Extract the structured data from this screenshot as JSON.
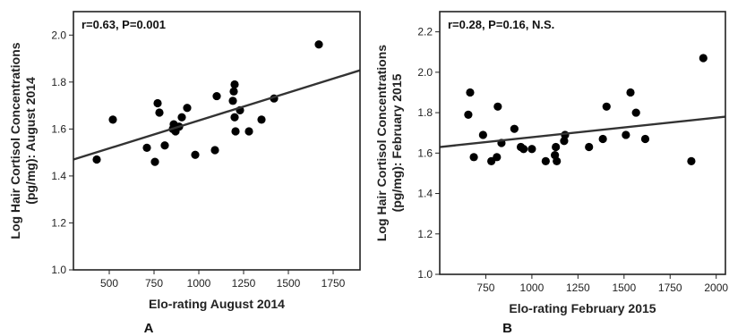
{
  "chart_data": [
    {
      "type": "scatter",
      "panel_label": "A",
      "annotation": "r=0.63, P=0.001",
      "xlabel": "Elo-rating August 2014",
      "ylabel_line1": "Log Hair Cortisol Concentrations",
      "ylabel_line2": "(pg/mg): August 2014",
      "xlim": [
        300,
        1900
      ],
      "ylim": [
        1.0,
        2.1
      ],
      "xticks": [
        500,
        750,
        1000,
        1250,
        1500,
        1750
      ],
      "yticks": [
        1.0,
        1.2,
        1.4,
        1.6,
        1.8,
        2.0
      ],
      "ytick_decimals": 1,
      "fit_line": {
        "x": [
          300,
          1900
        ],
        "y": [
          1.47,
          1.85
        ]
      },
      "points": [
        {
          "x": 430,
          "y": 1.47
        },
        {
          "x": 520,
          "y": 1.64
        },
        {
          "x": 710,
          "y": 1.52
        },
        {
          "x": 755,
          "y": 1.46
        },
        {
          "x": 770,
          "y": 1.71
        },
        {
          "x": 780,
          "y": 1.67
        },
        {
          "x": 810,
          "y": 1.53
        },
        {
          "x": 855,
          "y": 1.6
        },
        {
          "x": 860,
          "y": 1.62
        },
        {
          "x": 870,
          "y": 1.59
        },
        {
          "x": 890,
          "y": 1.61
        },
        {
          "x": 905,
          "y": 1.65
        },
        {
          "x": 935,
          "y": 1.69
        },
        {
          "x": 980,
          "y": 1.49
        },
        {
          "x": 1090,
          "y": 1.51
        },
        {
          "x": 1100,
          "y": 1.74
        },
        {
          "x": 1190,
          "y": 1.72
        },
        {
          "x": 1195,
          "y": 1.76
        },
        {
          "x": 1200,
          "y": 1.79
        },
        {
          "x": 1200,
          "y": 1.65
        },
        {
          "x": 1205,
          "y": 1.59
        },
        {
          "x": 1230,
          "y": 1.68
        },
        {
          "x": 1280,
          "y": 1.59
        },
        {
          "x": 1350,
          "y": 1.64
        },
        {
          "x": 1420,
          "y": 1.73
        },
        {
          "x": 1670,
          "y": 1.96
        }
      ]
    },
    {
      "type": "scatter",
      "panel_label": "B",
      "annotation": "r=0.28, P=0.16, N.S.",
      "xlabel": "Elo-rating February 2015",
      "ylabel_line1": "Log Hair Cortisol Concentrations",
      "ylabel_line2": "(pg/mg): February 2015",
      "xlim": [
        500,
        2050
      ],
      "ylim": [
        1.0,
        2.3
      ],
      "xticks": [
        750,
        1000,
        1250,
        1500,
        1750,
        2000
      ],
      "yticks": [
        1.0,
        1.2,
        1.4,
        1.6,
        1.8,
        2.0,
        2.2
      ],
      "ytick_decimals": 1,
      "fit_line": {
        "x": [
          500,
          2050
        ],
        "y": [
          1.63,
          1.78
        ]
      },
      "points": [
        {
          "x": 655,
          "y": 1.79
        },
        {
          "x": 665,
          "y": 1.9
        },
        {
          "x": 685,
          "y": 1.58
        },
        {
          "x": 735,
          "y": 1.69
        },
        {
          "x": 780,
          "y": 1.56
        },
        {
          "x": 810,
          "y": 1.58
        },
        {
          "x": 815,
          "y": 1.83
        },
        {
          "x": 835,
          "y": 1.65
        },
        {
          "x": 905,
          "y": 1.72
        },
        {
          "x": 940,
          "y": 1.63
        },
        {
          "x": 955,
          "y": 1.62
        },
        {
          "x": 1000,
          "y": 1.62
        },
        {
          "x": 1075,
          "y": 1.56
        },
        {
          "x": 1125,
          "y": 1.59
        },
        {
          "x": 1130,
          "y": 1.63
        },
        {
          "x": 1135,
          "y": 1.56
        },
        {
          "x": 1175,
          "y": 1.66
        },
        {
          "x": 1180,
          "y": 1.69
        },
        {
          "x": 1310,
          "y": 1.63
        },
        {
          "x": 1385,
          "y": 1.67
        },
        {
          "x": 1405,
          "y": 1.83
        },
        {
          "x": 1510,
          "y": 1.69
        },
        {
          "x": 1535,
          "y": 1.9
        },
        {
          "x": 1565,
          "y": 1.8
        },
        {
          "x": 1615,
          "y": 1.67
        },
        {
          "x": 1865,
          "y": 1.56
        },
        {
          "x": 1930,
          "y": 2.07
        }
      ]
    }
  ]
}
